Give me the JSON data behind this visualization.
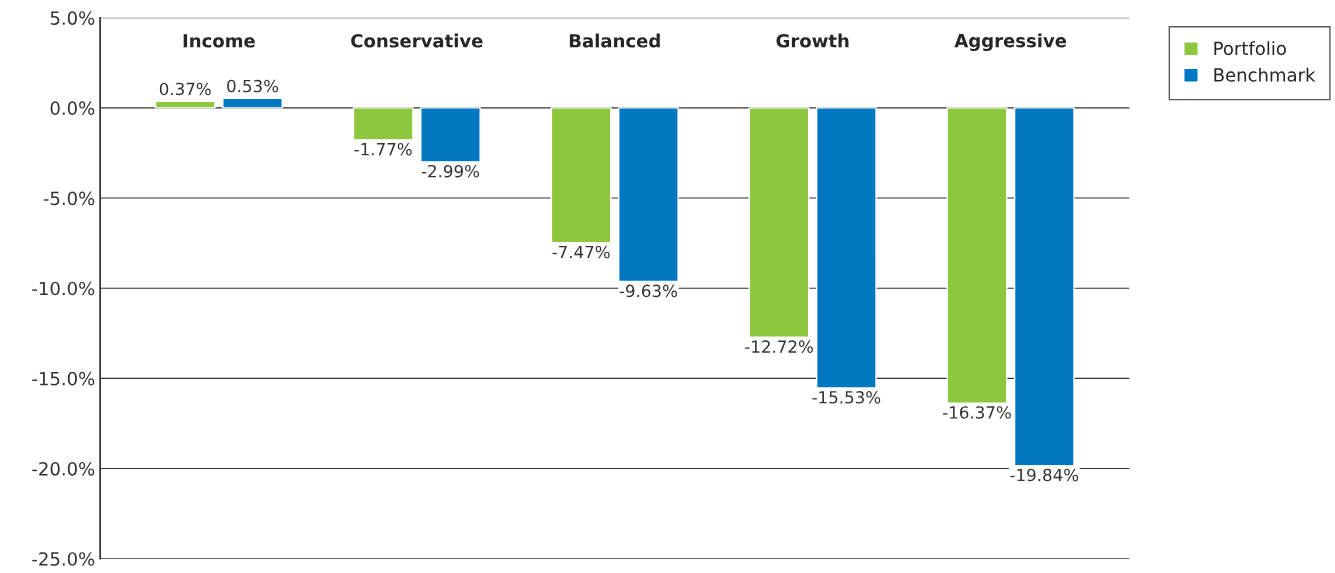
{
  "chart_data": {
    "type": "bar",
    "categories": [
      "Income",
      "Conservative",
      "Balanced",
      "Growth",
      "Aggressive"
    ],
    "series": [
      {
        "name": "Portfolio",
        "color": "#8dc63f",
        "values": [
          0.37,
          -1.77,
          -7.47,
          -12.72,
          -16.37
        ]
      },
      {
        "name": "Benchmark",
        "color": "#0077c0",
        "values": [
          0.53,
          -2.99,
          -9.63,
          -15.53,
          -19.84
        ]
      }
    ],
    "ylim": [
      -25,
      5
    ],
    "yticks": [
      {
        "value": 5,
        "label": "5.0%"
      },
      {
        "value": 0,
        "label": "0.0%"
      },
      {
        "value": -5,
        "label": "-5.0%"
      },
      {
        "value": -10,
        "label": "-10.0%"
      },
      {
        "value": -15,
        "label": "-15.0%"
      },
      {
        "value": -20,
        "label": "-20.0%"
      },
      {
        "value": -25,
        "label": "-25.0%"
      }
    ],
    "value_labels": [
      [
        "0.37%",
        "-1.77%",
        "-7.47%",
        "-12.72%",
        "-16.37%"
      ],
      [
        "0.53%",
        "-2.99%",
        "-9.63%",
        "-15.53%",
        "-19.84%"
      ]
    ],
    "grid": "y",
    "legend": "top right"
  }
}
